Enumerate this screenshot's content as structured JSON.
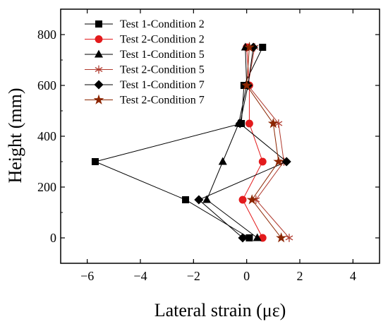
{
  "chart_data": {
    "type": "line",
    "title": "",
    "xlabel": "Lateral strain (με)",
    "ylabel": "Height (mm)",
    "xlim": [
      -7,
      5
    ],
    "ylim": [
      -100,
      900
    ],
    "xticks": [
      -6,
      -4,
      -2,
      0,
      2,
      4
    ],
    "yticks": [
      0,
      200,
      400,
      600,
      800
    ],
    "grid": false,
    "legend_position": "top-left",
    "series": [
      {
        "name": "Test 1-Condition 2",
        "color": "#000000",
        "marker": "square",
        "points": [
          [
            0.1,
            0
          ],
          [
            -2.3,
            150
          ],
          [
            -5.7,
            300
          ],
          [
            -0.2,
            450
          ],
          [
            -0.1,
            600
          ],
          [
            0.6,
            750
          ]
        ]
      },
      {
        "name": "Test 2-Condition 2",
        "color": "#e31a1c",
        "marker": "circle",
        "points": [
          [
            0.6,
            0
          ],
          [
            -0.15,
            150
          ],
          [
            0.6,
            300
          ],
          [
            0.1,
            450
          ],
          [
            0.1,
            600
          ],
          [
            0.0,
            750
          ]
        ]
      },
      {
        "name": "Test 1-Condition 5",
        "color": "#000000",
        "marker": "triangle",
        "points": [
          [
            0.4,
            0
          ],
          [
            -1.5,
            150
          ],
          [
            -0.9,
            300
          ],
          [
            -0.3,
            450
          ],
          [
            0.0,
            600
          ],
          [
            -0.05,
            750
          ]
        ]
      },
      {
        "name": "Test 2-Condition 5",
        "color": "#b03a2e",
        "marker": "asterisk",
        "points": [
          [
            1.6,
            0
          ],
          [
            0.35,
            150
          ],
          [
            1.4,
            300
          ],
          [
            1.2,
            450
          ],
          [
            0.05,
            600
          ],
          [
            0.3,
            750
          ]
        ]
      },
      {
        "name": "Test 1-Condition 7",
        "color": "#000000",
        "marker": "diamond",
        "points": [
          [
            -0.15,
            0
          ],
          [
            -1.8,
            150
          ],
          [
            1.5,
            300
          ],
          [
            -0.25,
            450
          ],
          [
            0.05,
            600
          ],
          [
            0.25,
            750
          ]
        ]
      },
      {
        "name": "Test 2-Condition 7",
        "color": "#8b2500",
        "marker": "star",
        "points": [
          [
            1.3,
            0
          ],
          [
            0.2,
            150
          ],
          [
            1.2,
            300
          ],
          [
            1.0,
            450
          ],
          [
            0.0,
            600
          ],
          [
            0.1,
            750
          ]
        ]
      }
    ]
  }
}
